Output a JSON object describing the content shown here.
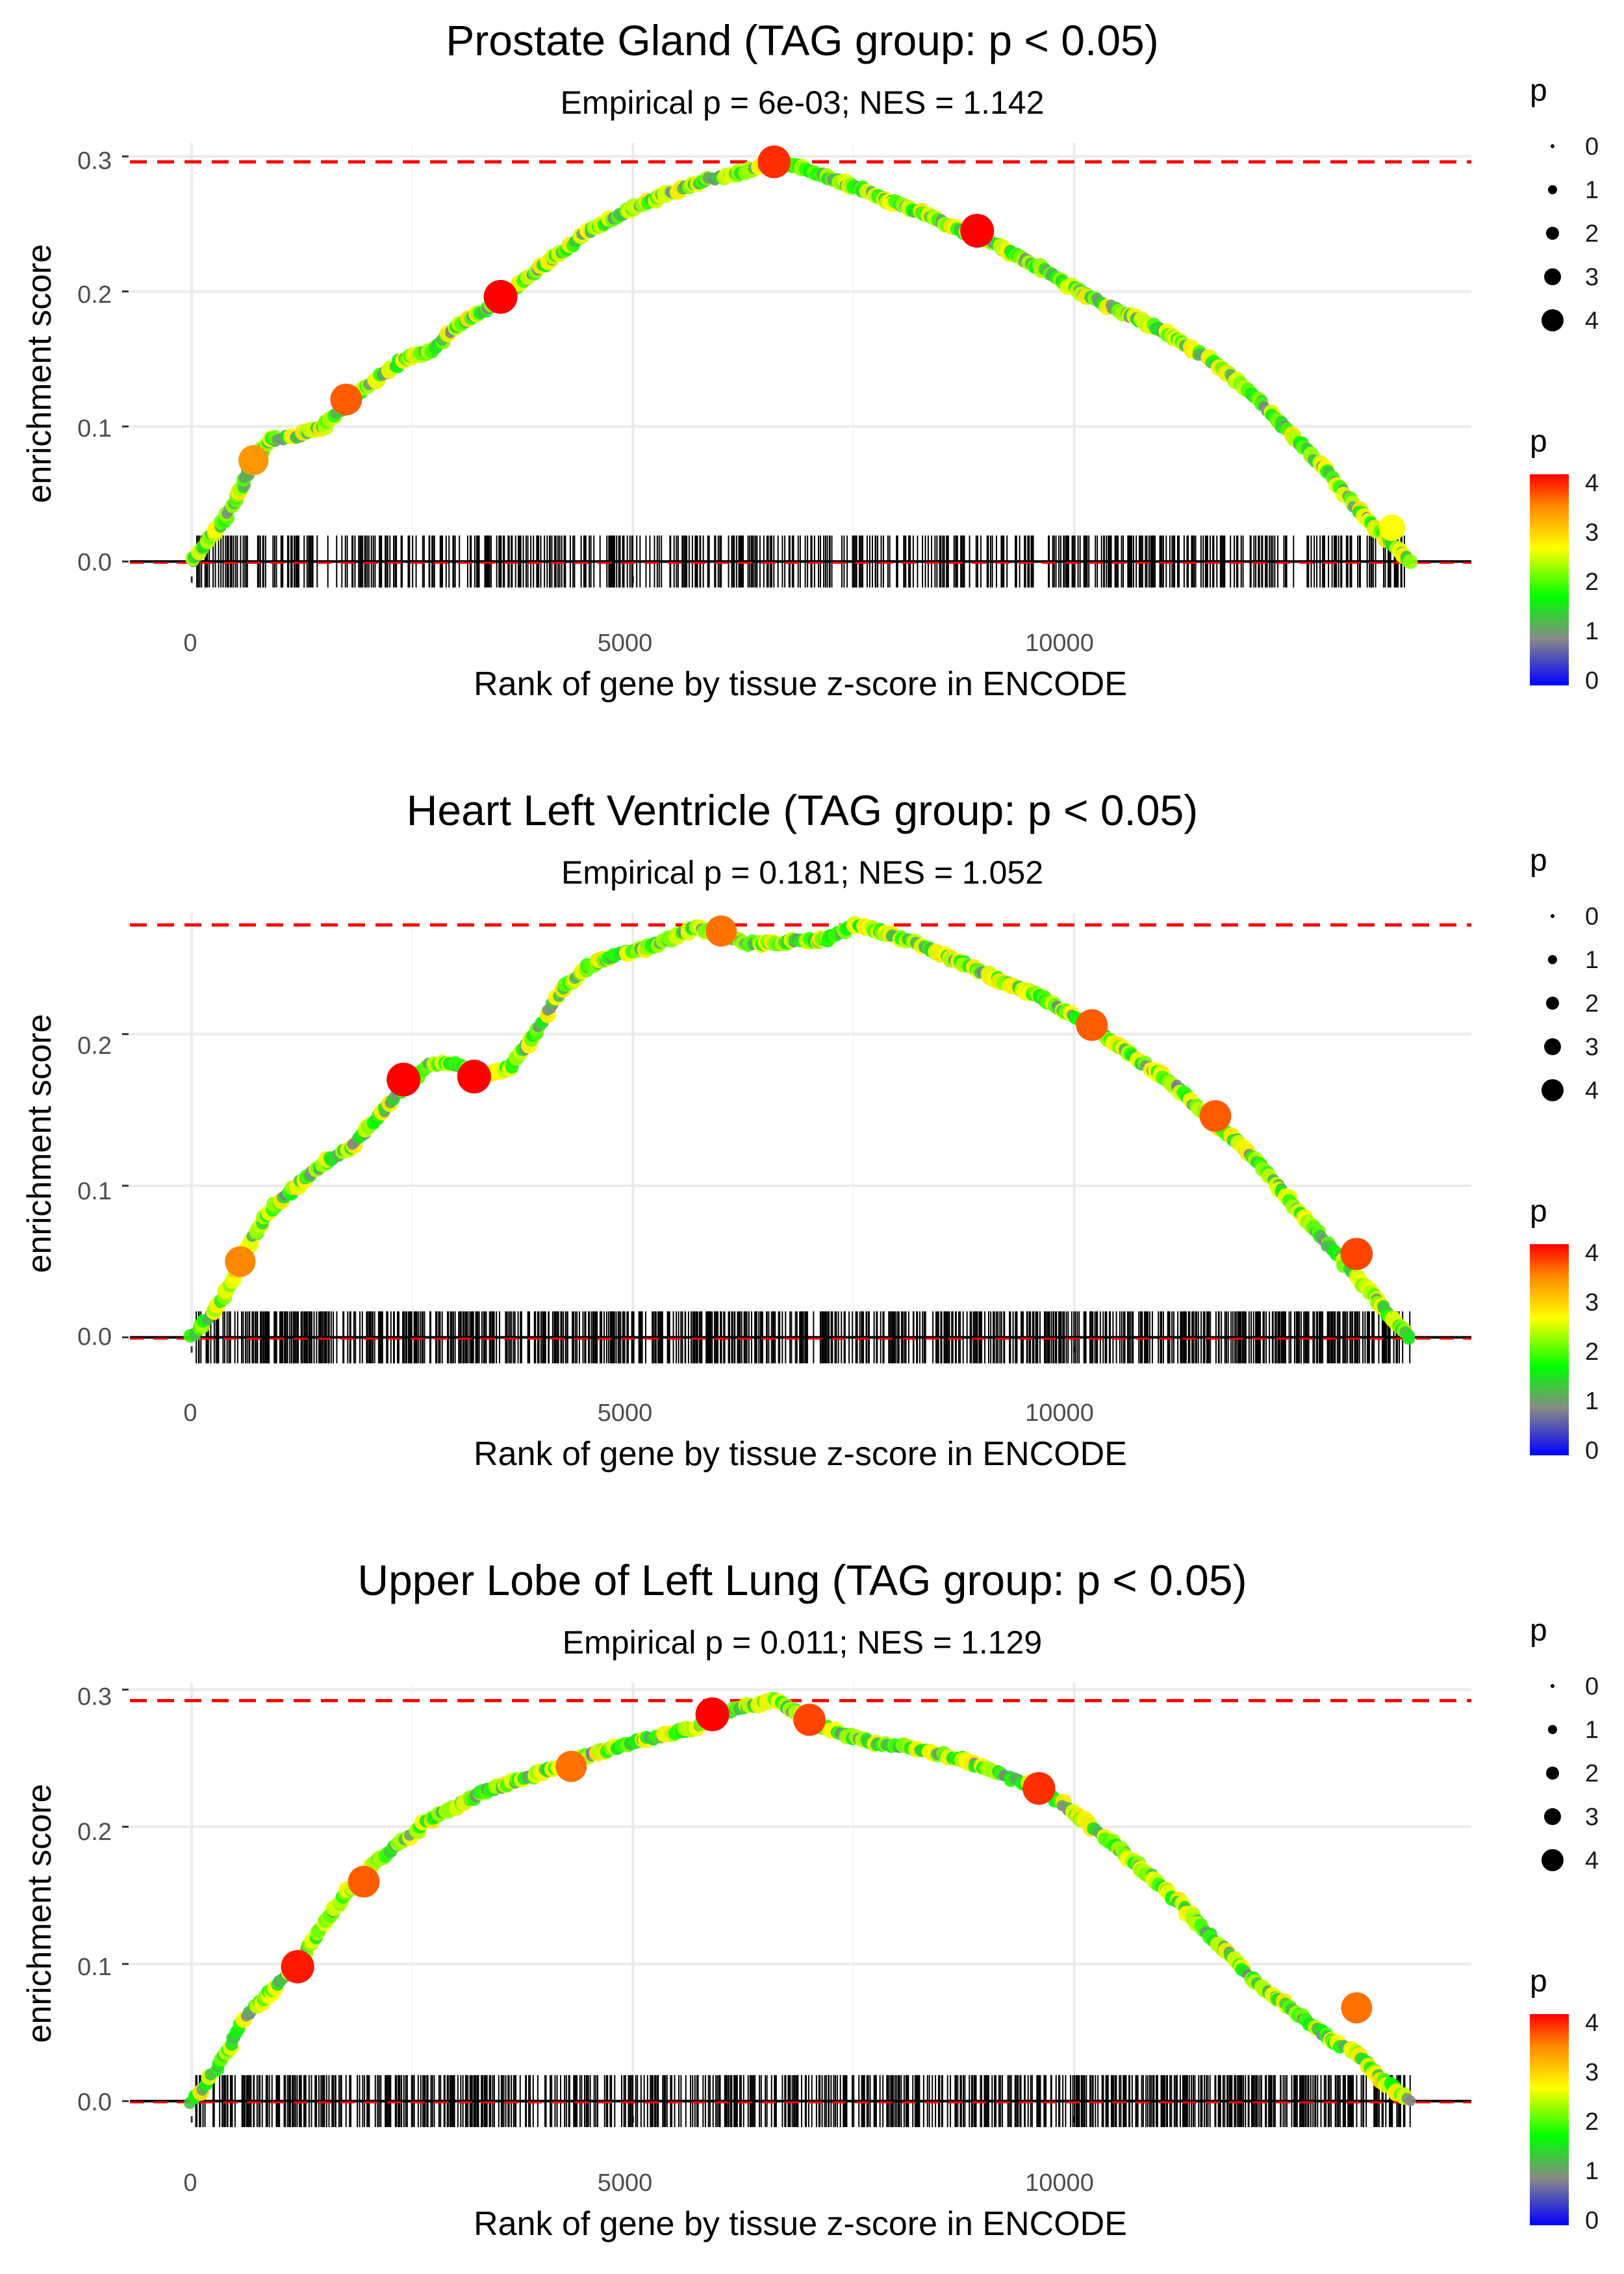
{
  "chart_data": [
    {
      "type": "line",
      "title": "Prostate Gland (TAG group: p < 0.05)",
      "subtitle": "Empirical p = 6e-03; NES = 1.142",
      "xlabel": "Rank of gene by tissue z-score in ENCODE",
      "ylabel": "enrichment score",
      "xlim": [
        -700,
        14500
      ],
      "ylim": [
        -0.01,
        0.31
      ],
      "x_ticks": [
        0,
        5000,
        10000
      ],
      "x_tick_labels": [
        "0",
        "5000",
        "10000"
      ],
      "y_ticks": [
        0.0,
        0.1,
        0.2,
        0.3
      ],
      "y_tick_labels": [
        "0.0",
        "0.1",
        "0.2",
        "0.3"
      ],
      "max_es": 0.296,
      "series": [
        {
          "name": "enrichment score",
          "x": [
            0,
            300,
            500,
            700,
            900,
            1200,
            1500,
            1800,
            2100,
            2400,
            2700,
            3000,
            3300,
            3600,
            3900,
            4200,
            4500,
            4800,
            5100,
            5400,
            5700,
            6000,
            6300,
            6600,
            6900,
            7200,
            7500,
            7800,
            8100,
            8400,
            8700,
            9000,
            9300,
            9600,
            9900,
            10200,
            10500,
            10800,
            11100,
            11400,
            11700,
            12000,
            12300,
            12600,
            12900,
            13200,
            13500,
            13800
          ],
          "y": [
            0.0,
            0.025,
            0.045,
            0.075,
            0.09,
            0.093,
            0.1,
            0.12,
            0.135,
            0.15,
            0.155,
            0.175,
            0.185,
            0.2,
            0.215,
            0.23,
            0.245,
            0.255,
            0.265,
            0.272,
            0.28,
            0.285,
            0.289,
            0.296,
            0.292,
            0.285,
            0.278,
            0.27,
            0.262,
            0.255,
            0.245,
            0.238,
            0.228,
            0.218,
            0.206,
            0.195,
            0.186,
            0.177,
            0.168,
            0.155,
            0.142,
            0.125,
            0.105,
            0.085,
            0.065,
            0.04,
            0.02,
            0.0
          ]
        }
      ],
      "highlighted_points": [
        {
          "x": 700,
          "y": 0.075,
          "p": 3.3
        },
        {
          "x": 1750,
          "y": 0.12,
          "p": 3.6
        },
        {
          "x": 3500,
          "y": 0.196,
          "p": 4.0
        },
        {
          "x": 6600,
          "y": 0.296,
          "p": 3.8
        },
        {
          "x": 8900,
          "y": 0.245,
          "p": 4.0
        },
        {
          "x": 13600,
          "y": 0.025,
          "p": 2.6
        }
      ],
      "gene_rug_density": 0.45
    },
    {
      "type": "line",
      "title": "Heart Left Ventricle (TAG group: p < 0.05)",
      "subtitle": "Empirical p = 0.181; NES = 1.052",
      "xlabel": "Rank of gene by tissue z-score in ENCODE",
      "ylabel": "enrichment score",
      "xlim": [
        -700,
        14500
      ],
      "ylim": [
        -0.005,
        0.28
      ],
      "x_ticks": [
        0,
        5000,
        10000
      ],
      "x_tick_labels": [
        "0",
        "5000",
        "10000"
      ],
      "y_ticks": [
        0.0,
        0.1,
        0.2
      ],
      "y_tick_labels": [
        "0.0",
        "0.1",
        "0.2"
      ],
      "max_es": 0.272,
      "series": [
        {
          "name": "enrichment score",
          "x": [
            0,
            300,
            600,
            900,
            1200,
            1500,
            1800,
            2100,
            2400,
            2700,
            3000,
            3300,
            3600,
            3900,
            4200,
            4500,
            4800,
            5100,
            5400,
            5700,
            6000,
            6300,
            6600,
            6900,
            7200,
            7500,
            7800,
            8100,
            8400,
            8700,
            9000,
            9300,
            9600,
            9900,
            10200,
            10500,
            10800,
            11100,
            11400,
            11700,
            12000,
            12300,
            12600,
            12900,
            13200,
            13500,
            13800
          ],
          "y": [
            0.0,
            0.02,
            0.055,
            0.085,
            0.1,
            0.115,
            0.125,
            0.145,
            0.165,
            0.18,
            0.18,
            0.172,
            0.178,
            0.2,
            0.23,
            0.245,
            0.252,
            0.256,
            0.262,
            0.27,
            0.266,
            0.26,
            0.26,
            0.262,
            0.262,
            0.272,
            0.268,
            0.262,
            0.255,
            0.248,
            0.24,
            0.232,
            0.225,
            0.215,
            0.205,
            0.192,
            0.18,
            0.168,
            0.152,
            0.137,
            0.12,
            0.1,
            0.08,
            0.06,
            0.04,
            0.02,
            0.0
          ]
        }
      ],
      "highlighted_points": [
        {
          "x": 550,
          "y": 0.05,
          "p": 3.4
        },
        {
          "x": 2400,
          "y": 0.17,
          "p": 4.0
        },
        {
          "x": 3200,
          "y": 0.172,
          "p": 4.0
        },
        {
          "x": 6000,
          "y": 0.268,
          "p": 3.5
        },
        {
          "x": 10200,
          "y": 0.206,
          "p": 3.6
        },
        {
          "x": 11600,
          "y": 0.146,
          "p": 3.6
        },
        {
          "x": 13200,
          "y": 0.055,
          "p": 3.7
        }
      ],
      "gene_rug_density": 0.6
    },
    {
      "type": "line",
      "title": "Upper Lobe of Left Lung (TAG group: p < 0.05)",
      "subtitle": "Empirical p = 0.011; NES = 1.129",
      "xlabel": "Rank of gene by tissue z-score in ENCODE",
      "ylabel": "enrichment score",
      "xlim": [
        -700,
        14500
      ],
      "ylim": [
        -0.01,
        0.305
      ],
      "x_ticks": [
        0,
        5000,
        10000
      ],
      "x_tick_labels": [
        "0",
        "5000",
        "10000"
      ],
      "y_ticks": [
        0.0,
        0.1,
        0.2,
        0.3
      ],
      "y_tick_labels": [
        "0.0",
        "0.1",
        "0.2",
        "0.3"
      ],
      "max_es": 0.292,
      "series": [
        {
          "name": "enrichment score",
          "x": [
            0,
            300,
            600,
            900,
            1200,
            1500,
            1800,
            2100,
            2400,
            2700,
            3000,
            3300,
            3600,
            3900,
            4200,
            4500,
            4800,
            5100,
            5400,
            5700,
            6000,
            6300,
            6600,
            6900,
            7200,
            7500,
            7800,
            8100,
            8400,
            8700,
            9000,
            9300,
            9600,
            9900,
            10200,
            10500,
            10800,
            11100,
            11400,
            11700,
            12000,
            12300,
            12600,
            12900,
            13200,
            13500,
            13800
          ],
          "y": [
            0.0,
            0.025,
            0.06,
            0.08,
            0.1,
            0.13,
            0.155,
            0.175,
            0.19,
            0.205,
            0.215,
            0.225,
            0.232,
            0.238,
            0.245,
            0.252,
            0.258,
            0.263,
            0.268,
            0.272,
            0.282,
            0.288,
            0.292,
            0.282,
            0.272,
            0.265,
            0.26,
            0.258,
            0.254,
            0.25,
            0.242,
            0.235,
            0.228,
            0.215,
            0.2,
            0.185,
            0.168,
            0.15,
            0.13,
            0.11,
            0.09,
            0.075,
            0.06,
            0.045,
            0.035,
            0.015,
            0.0
          ]
        }
      ],
      "highlighted_points": [
        {
          "x": 1200,
          "y": 0.098,
          "p": 3.9
        },
        {
          "x": 1950,
          "y": 0.16,
          "p": 3.6
        },
        {
          "x": 4300,
          "y": 0.244,
          "p": 3.5
        },
        {
          "x": 5900,
          "y": 0.282,
          "p": 4.0
        },
        {
          "x": 7000,
          "y": 0.278,
          "p": 3.7
        },
        {
          "x": 9600,
          "y": 0.228,
          "p": 3.8
        },
        {
          "x": 13200,
          "y": 0.068,
          "p": 3.5
        }
      ],
      "gene_rug_density": 0.55
    }
  ],
  "legends": [
    {
      "size_legend_title": "p",
      "size_legend_labels": [
        "0",
        "1",
        "2",
        "3",
        "4"
      ],
      "color_legend_title": "p",
      "color_legend_labels": [
        "0",
        "1",
        "2",
        "3",
        "4"
      ]
    },
    {
      "size_legend_title": "p",
      "size_legend_labels": [
        "0",
        "1",
        "2",
        "3",
        "4"
      ],
      "color_legend_title": "p",
      "color_legend_labels": [
        "0",
        "1",
        "2",
        "3",
        "4"
      ]
    },
    {
      "size_legend_title": "p",
      "size_legend_labels": [
        "0",
        "1",
        "2",
        "3",
        "4"
      ],
      "color_legend_title": "p",
      "color_legend_labels": [
        "0",
        "1",
        "2",
        "3",
        "4"
      ]
    }
  ],
  "colors": {
    "gradient": [
      "#0000ff",
      "#888888",
      "#00ff00",
      "#ffff00",
      "#ff8800",
      "#ff0000"
    ],
    "max_es_line": "#ff0000",
    "rug": "#000000",
    "grid": "#ebebeb"
  }
}
